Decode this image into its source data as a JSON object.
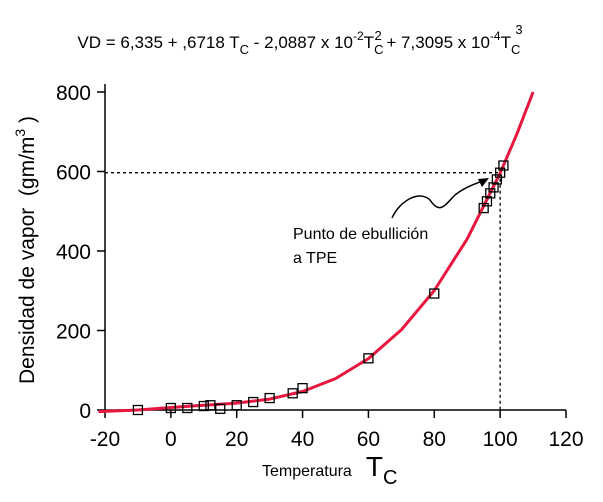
{
  "chart_data": {
    "type": "scatter",
    "title_parts": [
      "VD = 6,335 + ,6718 T",
      "C",
      " - 2,0887 x 10",
      "-2",
      "T",
      "C",
      "2",
      " + 7,3095 x 10",
      "-4",
      "T",
      "C",
      "3"
    ],
    "ylabel_parts": [
      "Densidad de vapor  (gm/m",
      "3",
      " )"
    ],
    "xlabel_parts": [
      "Temperatura",
      "T",
      "C"
    ],
    "annotation": [
      "Punto de ebullición",
      "a TPE"
    ],
    "xlim": [
      -20,
      120
    ],
    "ylim": [
      0,
      800
    ],
    "xticks": [
      -20,
      0,
      20,
      40,
      60,
      80,
      100,
      120
    ],
    "yticks": [
      0,
      200,
      400,
      600,
      800
    ],
    "x": [
      -10,
      0,
      5,
      10,
      12,
      15,
      20,
      25,
      30,
      37,
      40,
      60,
      80,
      95,
      96,
      97,
      98,
      99,
      100,
      101
    ],
    "values": [
      0,
      5,
      5,
      10,
      12,
      3,
      12,
      20,
      30,
      42,
      55,
      130,
      293,
      508,
      525,
      545,
      560,
      580,
      597,
      615
    ],
    "marker_color": "#000000",
    "fit": {
      "color": "#e8173f",
      "x": [
        -22,
        -10,
        0,
        10,
        20,
        30,
        40,
        50,
        60,
        70,
        80,
        90,
        100,
        105,
        110
      ],
      "values": [
        -4,
        0,
        6.3,
        11.7,
        17.3,
        27.4,
        46.6,
        79.1,
        129.3,
        201.7,
        300.6,
        430.5,
        595.6,
        692.7,
        800
      ]
    },
    "boiling_point": {
      "x": 100,
      "y": 597
    }
  }
}
